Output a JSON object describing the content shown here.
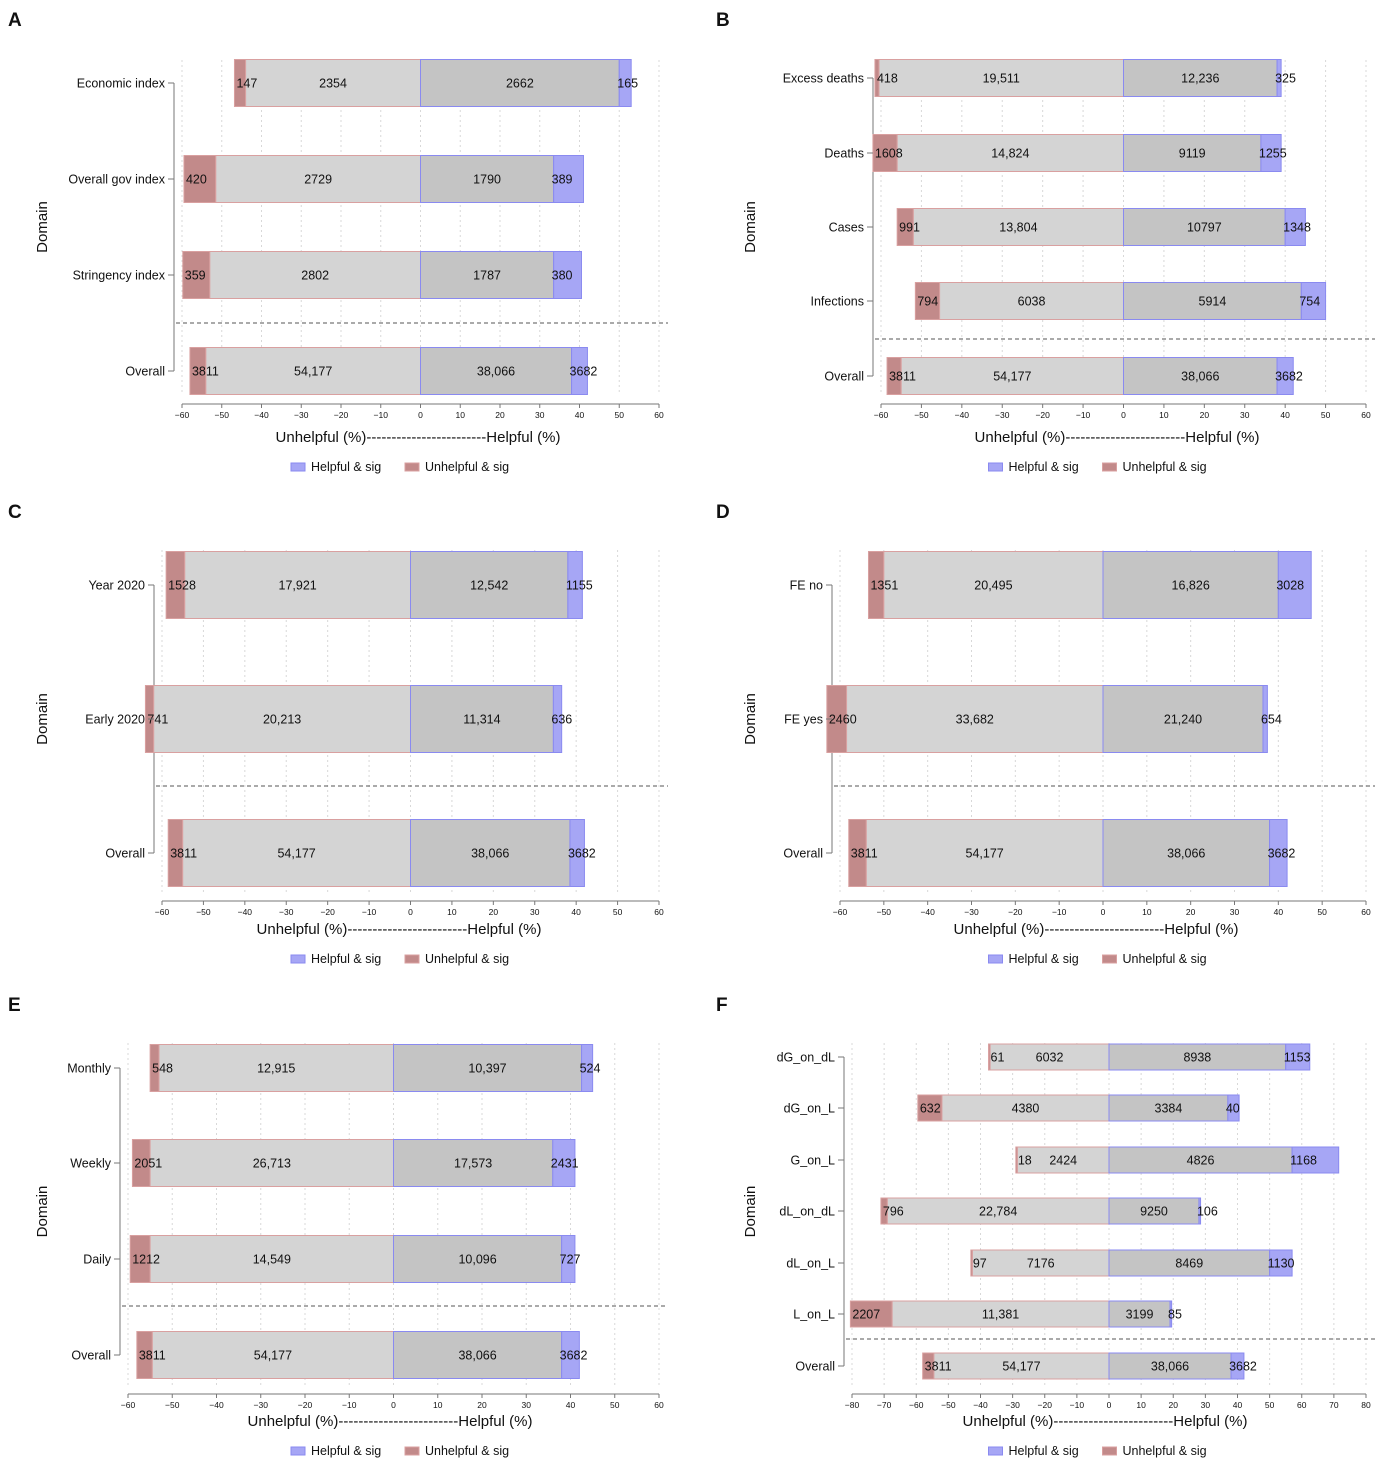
{
  "legend": {
    "helpful": {
      "label": "Helpful & sig",
      "color": "#a6a6f5"
    },
    "unhelpful": {
      "label": "Unhelpful & sig",
      "color": "#c28a8a"
    }
  },
  "colors": {
    "nonsig_unhelpful": "#d4d4d4",
    "nonsig_helpful": "#c4c4c4",
    "helpful_border": "#8a8af0",
    "unhelpful_border": "#d9a0a0"
  },
  "chart_data": [
    {
      "panel": "A",
      "type": "bar",
      "orientation": "horizontal-diverging",
      "xlabel": "Unhelpful (%)------------------------Helpful (%)",
      "ylabel": "Domain",
      "xlim": [
        -60,
        60
      ],
      "xticks": [
        -60,
        -50,
        -40,
        -30,
        -20,
        -10,
        0,
        10,
        20,
        30,
        40,
        50,
        60
      ],
      "categories": [
        "Economic index",
        "Overall gov index",
        "Stringency index",
        "Overall"
      ],
      "unhelpful_sig_pct": [
        -46.8,
        -59.5,
        -59.8,
        -58.0
      ],
      "unhelpful_nonsig_pct": [
        -44.0,
        -51.5,
        -53.0,
        -54.0
      ],
      "helpful_nonsig_pct": [
        50.0,
        33.5,
        33.5,
        38.0
      ],
      "helpful_sig_pct": [
        53.0,
        41.0,
        40.5,
        42.0
      ],
      "unhelpful_sig_n": [
        "147",
        "420",
        "359",
        "3811"
      ],
      "unhelpful_nonsig_n": [
        "2354",
        "2729",
        "2802",
        "54,177"
      ],
      "helpful_nonsig_n": [
        "2662",
        "1790",
        "1787",
        "38,066"
      ],
      "helpful_sig_n": [
        "165",
        "389",
        "380",
        "3682"
      ]
    },
    {
      "panel": "B",
      "type": "bar",
      "orientation": "horizontal-diverging",
      "xlabel": "Unhelpful (%)------------------------Helpful (%)",
      "ylabel": "Domain",
      "xlim": [
        -60,
        60
      ],
      "xticks": [
        -60,
        -50,
        -40,
        -30,
        -20,
        -10,
        0,
        10,
        20,
        30,
        40,
        50,
        60
      ],
      "categories": [
        "Excess deaths",
        "Deaths",
        "Cases",
        "Infections",
        "Overall"
      ],
      "unhelpful_sig_pct": [
        -61.5,
        -62.0,
        -56.0,
        -51.5,
        -58.5
      ],
      "unhelpful_nonsig_pct": [
        -60.5,
        -56.0,
        -52.0,
        -45.5,
        -55.0
      ],
      "helpful_nonsig_pct": [
        38.0,
        34.0,
        40.0,
        44.0,
        38.0
      ],
      "helpful_sig_pct": [
        39.0,
        39.0,
        45.0,
        50.0,
        42.0
      ],
      "unhelpful_sig_n": [
        "418",
        "1608",
        "991",
        "794",
        "3811"
      ],
      "unhelpful_nonsig_n": [
        "19,511",
        "14,824",
        "13,804",
        "6038",
        "54,177"
      ],
      "helpful_nonsig_n": [
        "12,236",
        "9119",
        "10797",
        "5914",
        "38,066"
      ],
      "helpful_sig_n": [
        "325",
        "1255",
        "1348",
        "754",
        "3682"
      ]
    },
    {
      "panel": "C",
      "type": "bar",
      "orientation": "horizontal-diverging",
      "xlabel": "Unhelpful (%)------------------------Helpful (%)",
      "ylabel": "Domain",
      "xlim": [
        -60,
        60
      ],
      "xticks": [
        -60,
        -50,
        -40,
        -30,
        -20,
        -10,
        0,
        10,
        20,
        30,
        40,
        50,
        60
      ],
      "categories": [
        "Year 2020",
        "Early 2020",
        "Overall"
      ],
      "unhelpful_sig_pct": [
        -59.0,
        -64.0,
        -58.5
      ],
      "unhelpful_nonsig_pct": [
        -54.5,
        -62.0,
        -55.0
      ],
      "helpful_nonsig_pct": [
        38.0,
        34.5,
        38.5
      ],
      "helpful_sig_pct": [
        41.5,
        36.5,
        42.0
      ],
      "unhelpful_sig_n": [
        "1528",
        "741",
        "3811"
      ],
      "unhelpful_nonsig_n": [
        "17,921",
        "20,213",
        "54,177"
      ],
      "helpful_nonsig_n": [
        "12,542",
        "11,314",
        "38,066"
      ],
      "helpful_sig_n": [
        "1155",
        "636",
        "3682"
      ]
    },
    {
      "panel": "D",
      "type": "bar",
      "orientation": "horizontal-diverging",
      "xlabel": "Unhelpful (%)------------------------Helpful (%)",
      "ylabel": "Domain",
      "xlim": [
        -60,
        60
      ],
      "xticks": [
        -60,
        -50,
        -40,
        -30,
        -20,
        -10,
        0,
        10,
        20,
        30,
        40,
        50,
        60
      ],
      "categories": [
        "FE no",
        "FE yes",
        "Overall"
      ],
      "unhelpful_sig_pct": [
        -53.5,
        -63.0,
        -58.0
      ],
      "unhelpful_nonsig_pct": [
        -50.0,
        -58.5,
        -54.0
      ],
      "helpful_nonsig_pct": [
        40.0,
        36.5,
        38.0
      ],
      "helpful_sig_pct": [
        47.5,
        37.5,
        42.0
      ],
      "unhelpful_sig_n": [
        "1351",
        "2460",
        "3811"
      ],
      "unhelpful_nonsig_n": [
        "20,495",
        "33,682",
        "54,177"
      ],
      "helpful_nonsig_n": [
        "16,826",
        "21,240",
        "38,066"
      ],
      "helpful_sig_n": [
        "3028",
        "654",
        "3682"
      ]
    },
    {
      "panel": "E",
      "type": "bar",
      "orientation": "horizontal-diverging",
      "xlabel": "Unhelpful (%)------------------------Helpful (%)",
      "ylabel": "Domain",
      "xlim": [
        -60,
        60
      ],
      "xticks": [
        -60,
        -50,
        -40,
        -30,
        -20,
        -10,
        0,
        10,
        20,
        30,
        40,
        50,
        60
      ],
      "categories": [
        "Monthly",
        "Weekly",
        "Daily",
        "Overall"
      ],
      "unhelpful_sig_pct": [
        -55.0,
        -59.0,
        -59.5,
        -58.0
      ],
      "unhelpful_nonsig_pct": [
        -53.0,
        -55.0,
        -55.0,
        -54.5
      ],
      "helpful_nonsig_pct": [
        42.5,
        36.0,
        38.0,
        38.0
      ],
      "helpful_sig_pct": [
        45.0,
        41.0,
        41.0,
        42.0
      ],
      "unhelpful_sig_n": [
        "548",
        "2051",
        "1212",
        "3811"
      ],
      "unhelpful_nonsig_n": [
        "12,915",
        "26,713",
        "14,549",
        "54,177"
      ],
      "helpful_nonsig_n": [
        "10,397",
        "17,573",
        "10,096",
        "38,066"
      ],
      "helpful_sig_n": [
        "524",
        "2431",
        "727",
        "3682"
      ]
    },
    {
      "panel": "F",
      "type": "bar",
      "orientation": "horizontal-diverging",
      "xlabel": "Unhelpful (%)------------------------Helpful (%)",
      "ylabel": "Domain",
      "xlim": [
        -80,
        80
      ],
      "xticks": [
        -80,
        -70,
        -60,
        -50,
        -40,
        -30,
        -20,
        -10,
        0,
        10,
        20,
        30,
        40,
        50,
        60,
        70,
        80
      ],
      "categories": [
        "dG_on_dL",
        "dG_on_L",
        "G_on_L",
        "dL_on_dL",
        "dL_on_L",
        "L_on_L",
        "Overall"
      ],
      "unhelpful_sig_pct": [
        -37.5,
        -59.5,
        -29.0,
        -71.0,
        -43.0,
        -80.5,
        -58.0
      ],
      "unhelpful_nonsig_pct": [
        -37.0,
        -52.0,
        -28.5,
        -69.0,
        -42.5,
        -67.5,
        -54.5
      ],
      "helpful_nonsig_pct": [
        55.0,
        37.0,
        57.0,
        28.0,
        50.0,
        19.0,
        38.0
      ],
      "helpful_sig_pct": [
        62.5,
        40.5,
        71.5,
        28.5,
        57.0,
        19.5,
        42.0
      ],
      "unhelpful_sig_n": [
        "61",
        "632",
        "18",
        "796",
        "97",
        "2207",
        "3811"
      ],
      "unhelpful_nonsig_n": [
        "6032",
        "4380",
        "2424",
        "22,784",
        "7176",
        "11,381",
        "54,177"
      ],
      "helpful_nonsig_n": [
        "8938",
        "3384",
        "4826",
        "9250",
        "8469",
        "3199",
        "38,066"
      ],
      "helpful_sig_n": [
        "1153",
        "40",
        "1168",
        "106",
        "1130",
        "85",
        "3682"
      ]
    }
  ]
}
